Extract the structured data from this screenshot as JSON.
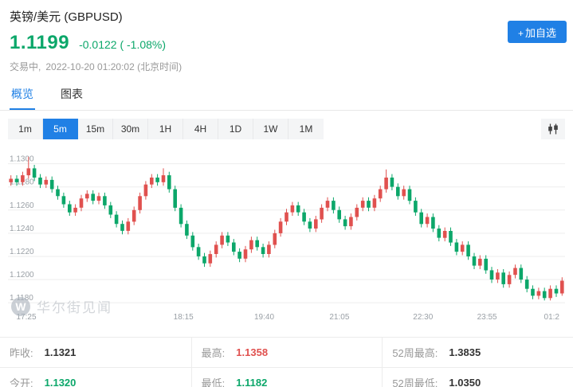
{
  "colors": {
    "accent": "#2080E5",
    "green": "#0CA76A",
    "red": "#E0514F"
  },
  "header": {
    "title": "英镑/美元 (GBPUSD)",
    "price": "1.1199",
    "price_color": "#0CA76A",
    "change": "-0.0122 ( -1.08%)",
    "status": "交易中,",
    "datetime": "2022-10-20 01:20:02 (北京时间)",
    "add_button": {
      "plus": "+",
      "label": "加自选"
    }
  },
  "tabs": [
    {
      "name": "overview",
      "label": "概览",
      "active": true
    },
    {
      "name": "chart",
      "label": "图表",
      "active": false
    }
  ],
  "toolbar": {
    "intervals": [
      {
        "label": "1m",
        "active": false
      },
      {
        "label": "5m",
        "active": true
      },
      {
        "label": "15m",
        "active": false
      },
      {
        "label": "30m",
        "active": false
      },
      {
        "label": "1H",
        "active": false
      },
      {
        "label": "4H",
        "active": false
      },
      {
        "label": "1D",
        "active": false
      },
      {
        "label": "1W",
        "active": false
      },
      {
        "label": "1M",
        "active": false
      }
    ]
  },
  "watermark": {
    "logo": "W",
    "text": "华尔街见闻"
  },
  "stats": {
    "columns": [
      [
        {
          "label": "昨收:",
          "value": "1.1321",
          "color": "#333333"
        },
        {
          "label": "今开:",
          "value": "1.1320",
          "color": "#0CA76A"
        }
      ],
      [
        {
          "label": "最高:",
          "value": "1.1358",
          "color": "#E0514F"
        },
        {
          "label": "最低:",
          "value": "1.1182",
          "color": "#0CA76A"
        }
      ],
      [
        {
          "label": "52周最高:",
          "value": "1.3835",
          "color": "#333333"
        },
        {
          "label": "52周最低:",
          "value": "1.0350",
          "color": "#333333"
        }
      ]
    ]
  },
  "chart_data": {
    "type": "candlestick",
    "symbol": "GBPUSD",
    "interval": "5m",
    "up_color": "#E0514F",
    "down_color": "#0CA76A",
    "grid_color": "#ededed",
    "y_axis": {
      "min": 1.1176,
      "max": 1.131,
      "gridlines": [
        1.13,
        1.128,
        1.126,
        1.124,
        1.122,
        1.12,
        1.118
      ],
      "labels": [
        "1.1300",
        "1.1280",
        "1.1260",
        "1.1240",
        "1.1220",
        "1.1200",
        "1.1180"
      ]
    },
    "x_ticks": [
      {
        "pos": 0.015,
        "label": "17:25"
      },
      {
        "pos": 0.315,
        "label": "18:15"
      },
      {
        "pos": 0.46,
        "label": "19:40"
      },
      {
        "pos": 0.595,
        "label": "21:05"
      },
      {
        "pos": 0.745,
        "label": "22:30"
      },
      {
        "pos": 0.86,
        "label": "23:55"
      },
      {
        "pos": 0.99,
        "label": "01:2"
      }
    ],
    "candles": [
      [
        1.1284,
        1.129,
        1.1281,
        1.1287
      ],
      [
        1.1287,
        1.129,
        1.1281,
        1.1284
      ],
      [
        1.1284,
        1.1293,
        1.1281,
        1.129
      ],
      [
        1.129,
        1.1306,
        1.1287,
        1.1296
      ],
      [
        1.1296,
        1.1299,
        1.1285,
        1.1288
      ],
      [
        1.1288,
        1.1291,
        1.1279,
        1.1282
      ],
      [
        1.1282,
        1.1289,
        1.1279,
        1.1286
      ],
      [
        1.1286,
        1.1289,
        1.1275,
        1.1278
      ],
      [
        1.1278,
        1.1281,
        1.1269,
        1.1272
      ],
      [
        1.1272,
        1.1275,
        1.1262,
        1.1265
      ],
      [
        1.1265,
        1.1268,
        1.1255,
        1.1258
      ],
      [
        1.1258,
        1.1265,
        1.1255,
        1.1262
      ],
      [
        1.1262,
        1.1273,
        1.1259,
        1.127
      ],
      [
        1.127,
        1.1277,
        1.1267,
        1.1274
      ],
      [
        1.1274,
        1.1277,
        1.1265,
        1.1268
      ],
      [
        1.1268,
        1.1275,
        1.1265,
        1.1272
      ],
      [
        1.1272,
        1.1275,
        1.1261,
        1.1264
      ],
      [
        1.1264,
        1.1267,
        1.1253,
        1.1256
      ],
      [
        1.1256,
        1.1259,
        1.1245,
        1.1248
      ],
      [
        1.1248,
        1.1251,
        1.1239,
        1.1242
      ],
      [
        1.1242,
        1.1253,
        1.1239,
        1.125
      ],
      [
        1.125,
        1.1263,
        1.1247,
        1.126
      ],
      [
        1.126,
        1.1275,
        1.1257,
        1.1272
      ],
      [
        1.1272,
        1.1285,
        1.1269,
        1.1282
      ],
      [
        1.1282,
        1.1291,
        1.1279,
        1.1288
      ],
      [
        1.1288,
        1.1291,
        1.1281,
        1.1284
      ],
      [
        1.1284,
        1.1296,
        1.1281,
        1.129
      ],
      [
        1.129,
        1.1293,
        1.1275,
        1.1278
      ],
      [
        1.1278,
        1.1281,
        1.1259,
        1.1262
      ],
      [
        1.1262,
        1.1265,
        1.1245,
        1.1248
      ],
      [
        1.1248,
        1.1251,
        1.1235,
        1.1238
      ],
      [
        1.1238,
        1.1241,
        1.1225,
        1.1228
      ],
      [
        1.1228,
        1.1231,
        1.1217,
        1.122
      ],
      [
        1.122,
        1.1223,
        1.1211,
        1.1214
      ],
      [
        1.1214,
        1.1225,
        1.1211,
        1.1222
      ],
      [
        1.1222,
        1.1233,
        1.1219,
        1.123
      ],
      [
        1.123,
        1.1241,
        1.1227,
        1.1238
      ],
      [
        1.1238,
        1.1241,
        1.1229,
        1.1232
      ],
      [
        1.1232,
        1.1235,
        1.1221,
        1.1224
      ],
      [
        1.1224,
        1.1227,
        1.1215,
        1.1218
      ],
      [
        1.1218,
        1.1229,
        1.1215,
        1.1226
      ],
      [
        1.1226,
        1.1237,
        1.1223,
        1.1234
      ],
      [
        1.1234,
        1.1237,
        1.1225,
        1.1228
      ],
      [
        1.1228,
        1.1231,
        1.1219,
        1.1222
      ],
      [
        1.1222,
        1.1233,
        1.1219,
        1.123
      ],
      [
        1.123,
        1.1243,
        1.1227,
        1.124
      ],
      [
        1.124,
        1.1253,
        1.1237,
        1.125
      ],
      [
        1.125,
        1.1261,
        1.1247,
        1.1258
      ],
      [
        1.1258,
        1.1267,
        1.1255,
        1.1264
      ],
      [
        1.1264,
        1.1267,
        1.1255,
        1.1258
      ],
      [
        1.1258,
        1.1261,
        1.1247,
        1.125
      ],
      [
        1.125,
        1.1253,
        1.1241,
        1.1244
      ],
      [
        1.1244,
        1.1255,
        1.1241,
        1.1252
      ],
      [
        1.1252,
        1.1265,
        1.1249,
        1.1262
      ],
      [
        1.1262,
        1.1271,
        1.1259,
        1.1268
      ],
      [
        1.1268,
        1.1271,
        1.1257,
        1.126
      ],
      [
        1.126,
        1.1263,
        1.1249,
        1.1252
      ],
      [
        1.1252,
        1.1255,
        1.1243,
        1.1246
      ],
      [
        1.1246,
        1.1257,
        1.1243,
        1.1254
      ],
      [
        1.1254,
        1.1265,
        1.1251,
        1.1262
      ],
      [
        1.1262,
        1.1271,
        1.1259,
        1.1268
      ],
      [
        1.1268,
        1.1271,
        1.1259,
        1.1262
      ],
      [
        1.1262,
        1.1273,
        1.1259,
        1.127
      ],
      [
        1.127,
        1.1281,
        1.1267,
        1.1278
      ],
      [
        1.1278,
        1.1295,
        1.1275,
        1.1288
      ],
      [
        1.1288,
        1.1291,
        1.1277,
        1.128
      ],
      [
        1.128,
        1.1283,
        1.1269,
        1.1272
      ],
      [
        1.1272,
        1.1281,
        1.1269,
        1.1278
      ],
      [
        1.1278,
        1.1281,
        1.1265,
        1.1268
      ],
      [
        1.1268,
        1.1271,
        1.1255,
        1.1258
      ],
      [
        1.1258,
        1.1261,
        1.1245,
        1.1248
      ],
      [
        1.1248,
        1.1257,
        1.1245,
        1.1254
      ],
      [
        1.1254,
        1.1257,
        1.1241,
        1.1244
      ],
      [
        1.1244,
        1.1247,
        1.1233,
        1.1236
      ],
      [
        1.1236,
        1.1245,
        1.1233,
        1.1242
      ],
      [
        1.1242,
        1.1245,
        1.1229,
        1.1232
      ],
      [
        1.1232,
        1.1235,
        1.1221,
        1.1224
      ],
      [
        1.1224,
        1.1233,
        1.1221,
        1.123
      ],
      [
        1.123,
        1.1233,
        1.1217,
        1.122
      ],
      [
        1.122,
        1.1223,
        1.1209,
        1.1212
      ],
      [
        1.1212,
        1.1221,
        1.1209,
        1.1218
      ],
      [
        1.1218,
        1.1221,
        1.1205,
        1.1208
      ],
      [
        1.1208,
        1.1211,
        1.1197,
        1.12
      ],
      [
        1.12,
        1.1209,
        1.1197,
        1.1206
      ],
      [
        1.1206,
        1.1209,
        1.1193,
        1.1196
      ],
      [
        1.1196,
        1.1207,
        1.1193,
        1.1204
      ],
      [
        1.1204,
        1.1213,
        1.1201,
        1.121
      ],
      [
        1.121,
        1.1213,
        1.1197,
        1.12
      ],
      [
        1.12,
        1.1203,
        1.1189,
        1.1192
      ],
      [
        1.1192,
        1.1195,
        1.1183,
        1.1186
      ],
      [
        1.1186,
        1.1193,
        1.1183,
        1.119
      ],
      [
        1.119,
        1.1193,
        1.1182,
        1.1184
      ],
      [
        1.1184,
        1.1195,
        1.1182,
        1.1192
      ],
      [
        1.1192,
        1.1195,
        1.1185,
        1.1188
      ],
      [
        1.1188,
        1.1202,
        1.1186,
        1.1199
      ]
    ]
  }
}
